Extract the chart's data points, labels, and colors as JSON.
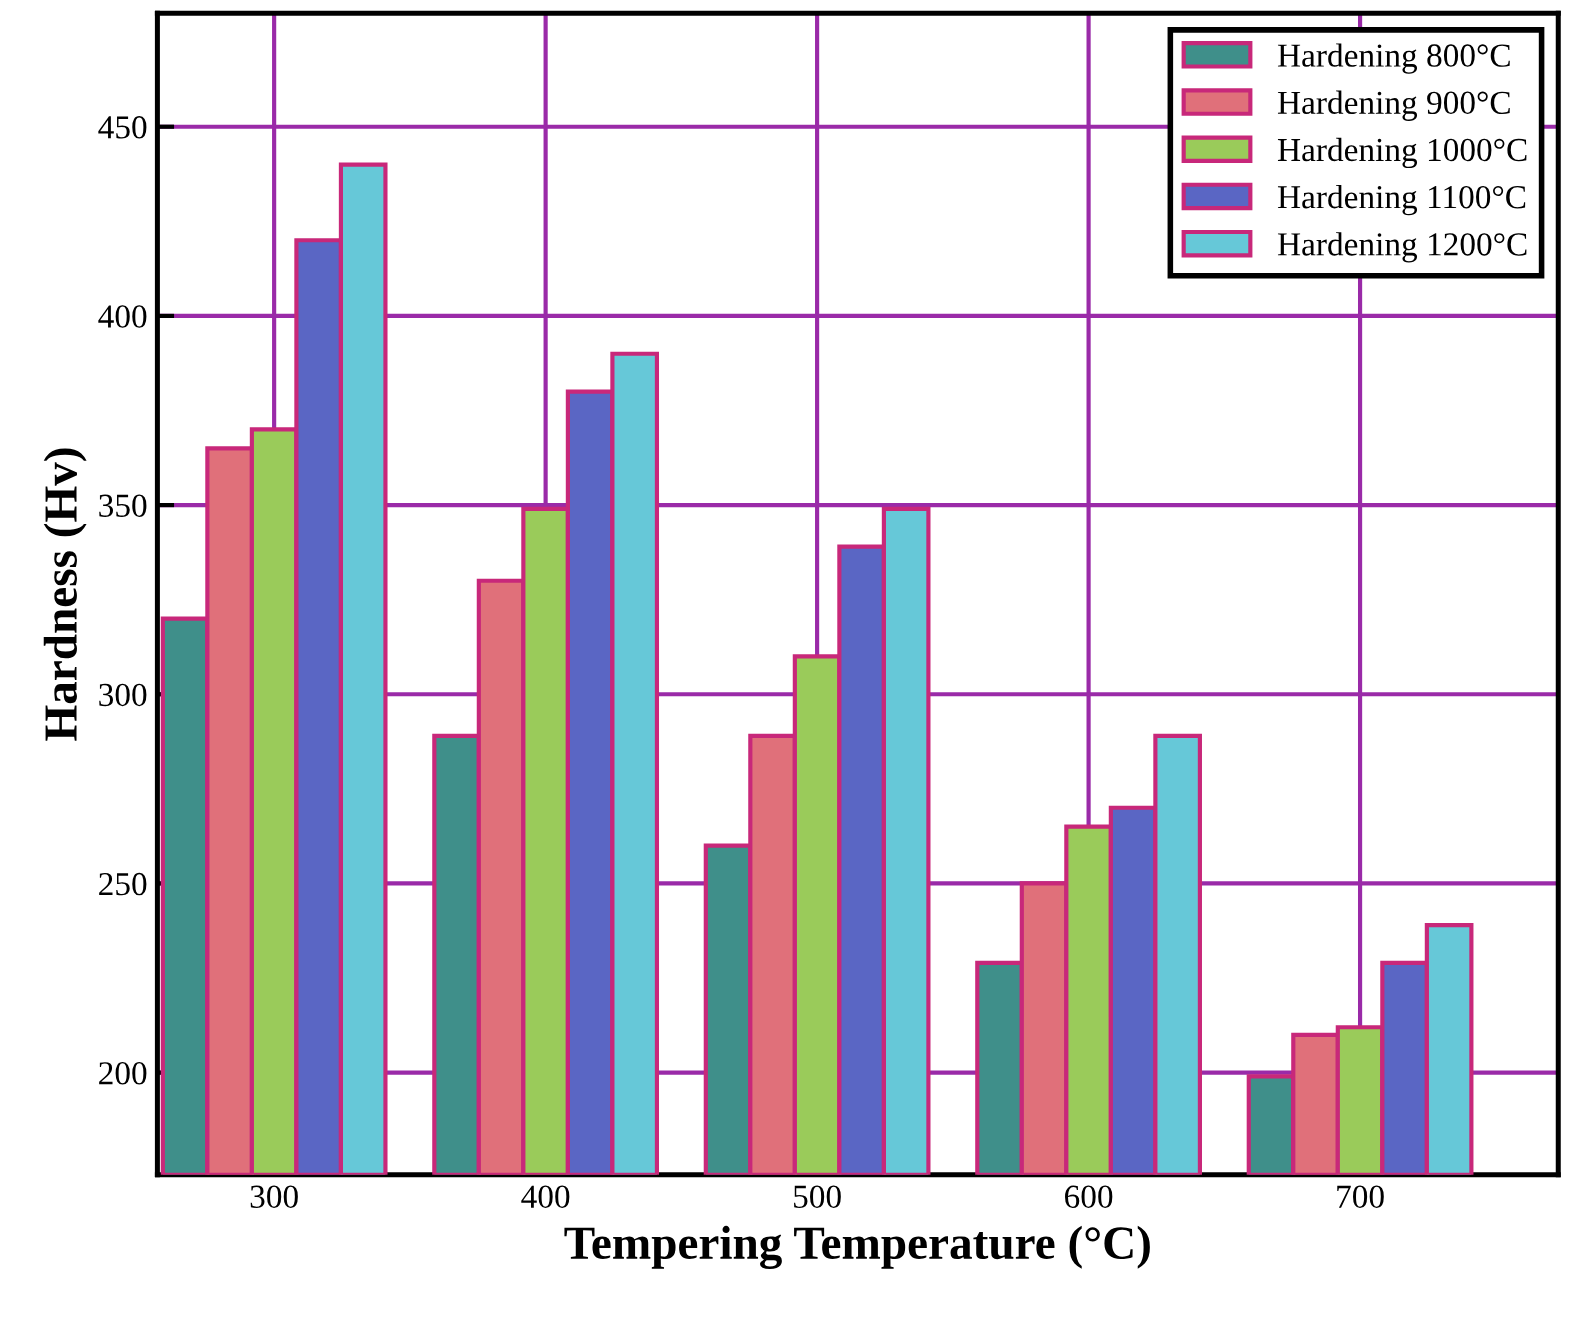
{
  "chart_data": {
    "type": "bar",
    "xlabel": "Tempering Temperature (°C)",
    "ylabel": "Hardness (Hv)",
    "x": [
      300,
      400,
      500,
      600,
      700
    ],
    "series": [
      {
        "name": "Hardening 800°C",
        "color": "#3f8f8a",
        "values": [
          320,
          289,
          260,
          229,
          199
        ]
      },
      {
        "name": "Hardening 900°C",
        "color": "#e0707a",
        "values": [
          365,
          330,
          289,
          250,
          210
        ]
      },
      {
        "name": "Hardening 1000°C",
        "color": "#9acb5a",
        "values": [
          370,
          349,
          310,
          265,
          212
        ]
      },
      {
        "name": "Hardening 1100°C",
        "color": "#5a66c4",
        "values": [
          420,
          380,
          339,
          270,
          229
        ]
      },
      {
        "name": "Hardening 1200°C",
        "color": "#66c8d8",
        "values": [
          440,
          390,
          349,
          289,
          239
        ]
      }
    ],
    "xlim": [
      257,
      773
    ],
    "ylim": [
      173,
      480
    ],
    "xticks": [
      300,
      400,
      500,
      600,
      700
    ],
    "yticks": [
      200,
      250,
      300,
      350,
      400,
      450
    ],
    "grid": true,
    "legend": "top right"
  }
}
